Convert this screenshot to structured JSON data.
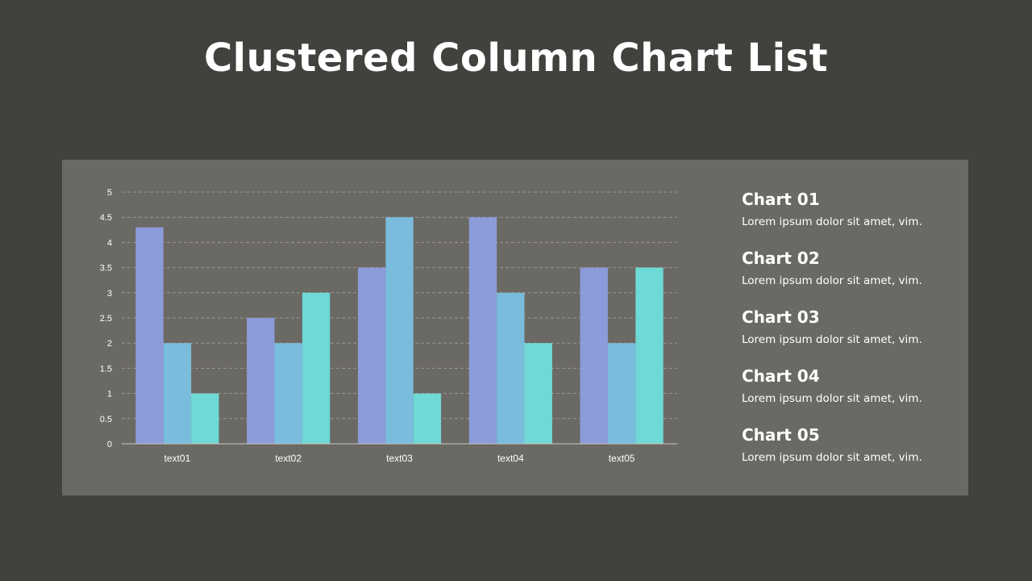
{
  "title": "Clustered Column Chart List",
  "colors": {
    "background": "#43413d",
    "panel": "#6b6964",
    "series": [
      "#8c9bd9",
      "#79bcdb",
      "#6fd9d6"
    ],
    "grid": "#9a9893",
    "axis": "#c8c6c2"
  },
  "chart_data": {
    "type": "bar",
    "title": "",
    "xlabel": "",
    "ylabel": "",
    "ylim": [
      0,
      5
    ],
    "yticks": [
      "0",
      "0.5",
      "1",
      "1.5",
      "2",
      "2.5",
      "3",
      "3.5",
      "4",
      "4.5",
      "5"
    ],
    "grid": true,
    "legend": "none",
    "categories": [
      "text01",
      "text02",
      "text03",
      "text04",
      "text05"
    ],
    "series": [
      {
        "values": [
          4.3,
          2.5,
          3.5,
          4.5,
          3.5
        ]
      },
      {
        "values": [
          2,
          2,
          4.5,
          3,
          2
        ]
      },
      {
        "values": [
          1,
          3,
          1,
          2,
          3.5
        ]
      }
    ]
  },
  "list": [
    {
      "title": "Chart 01",
      "desc": "Lorem ipsum dolor sit amet, vim."
    },
    {
      "title": "Chart 02",
      "desc": "Lorem ipsum dolor sit amet, vim."
    },
    {
      "title": "Chart 03",
      "desc": "Lorem ipsum dolor sit amet, vim."
    },
    {
      "title": "Chart 04",
      "desc": "Lorem ipsum dolor sit amet, vim."
    },
    {
      "title": "Chart 05",
      "desc": "Lorem ipsum dolor sit amet, vim."
    }
  ]
}
